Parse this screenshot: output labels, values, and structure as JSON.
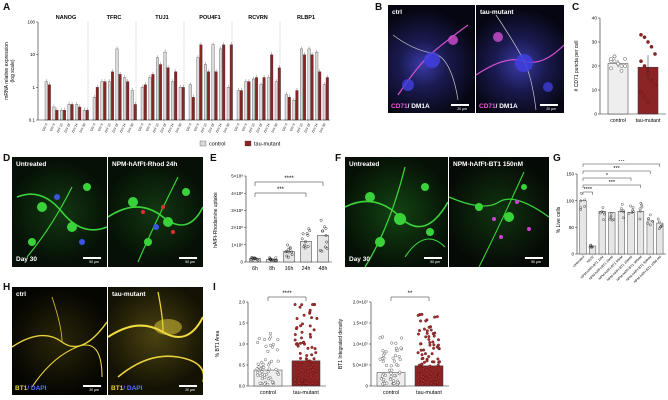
{
  "panels": {
    "A": {
      "letter": "A",
      "ylabel": "mRNA relative expression",
      "ylabel2": "(log scale)",
      "yticks": [
        "100",
        "10",
        "1",
        "0.1"
      ],
      "genes": [
        "NANOG",
        "TFRC",
        "TUJ1",
        "POU4F1",
        "RCVRN",
        "RLBP1"
      ],
      "days": [
        "DIV 0",
        "DIV 6",
        "DIV 12",
        "DIV 18",
        "DIV 24",
        "DIV 30"
      ],
      "legend": [
        "control",
        "tau-mutant"
      ]
    },
    "B": {
      "letter": "B",
      "ctrl": "ctrl",
      "mut": "tau-mutant",
      "stain_a": "CD71",
      "stain_b": "/ DM1A",
      "scale": "20 µm"
    },
    "C": {
      "letter": "C",
      "ylabel": "# CD71 puncta per cell",
      "yticks": [
        "40",
        "30",
        "20",
        "10",
        "0"
      ],
      "xcats": [
        "control",
        "tau-mutant"
      ]
    },
    "D": {
      "letter": "D",
      "left": "Untreated",
      "right": "NPM-hAfFt-Rhod 24h",
      "day": "Day 30",
      "scale": "50 µm"
    },
    "E": {
      "letter": "E",
      "ylabel": "hAfFt-Rhodamine uptake",
      "yticks": [
        "5×10⁸",
        "4×10⁸",
        "3×10⁸",
        "2×10⁸",
        "1×10⁸",
        "0"
      ],
      "xcats": [
        "6h",
        "8h",
        "16h",
        "24h",
        "48h"
      ],
      "sig1": "****",
      "sig2": "***"
    },
    "F": {
      "letter": "F",
      "left": "Untreated",
      "right": "NPM-hAfFt-BT1 150nM",
      "day": "Day 30",
      "scale": "50 µm"
    },
    "G": {
      "letter": "G",
      "ylabel": "% Live cells",
      "yticks": [
        "150",
        "100",
        "50",
        "0"
      ],
      "xcats": [
        "Untreated",
        "H2O2",
        "NPM-hAfFt-BT1 1nM",
        "NPM-hAfFt-BT1 10nM",
        "NPM-hAfFt-BT1 50nM",
        "NPM-hAfFt-BT1 150nM",
        "NPM-hAfFt-BT1 300nM",
        "NPM-hAfFt-BT1 500nM",
        "NPM-hAfFt-BT1 1000 nM"
      ],
      "sigs": [
        "****",
        "***",
        "***",
        "*",
        "***"
      ]
    },
    "H": {
      "letter": "H",
      "ctrl": "ctrl",
      "mut": "tau-mutant",
      "stain_a": "BT1",
      "stain_b": "/ DAPI",
      "scale": "20 µm"
    },
    "I": {
      "letter": "I",
      "left": {
        "ylabel": "% BT1 Area",
        "yticks": [
          "2.0",
          "1.5",
          "1.0",
          "0.5",
          "0.0"
        ],
        "sig": "****"
      },
      "right": {
        "ylabel": "BT1 Integrated density",
        "yticks": [
          "2.0×10⁷",
          "1.5×10⁷",
          "1.0×10⁷",
          "5.0×10⁶",
          "0"
        ],
        "sig": "**"
      },
      "xcats": [
        "control",
        "tau-mutant"
      ]
    }
  },
  "colors": {
    "control": "#d9d9d9",
    "mutant": "#8b2525",
    "magenta": "#d040d0",
    "green": "#39c839",
    "yellow": "#e8d23a",
    "blue": "#3a55e0"
  },
  "chart_data": [
    {
      "type": "bar",
      "panel": "A",
      "scale": "log",
      "ylim": [
        0.1,
        100
      ],
      "categories": [
        "DIV 0",
        "DIV 6",
        "DIV 12",
        "DIV 18",
        "DIV 24",
        "DIV 30"
      ],
      "groups": [
        "NANOG",
        "TFRC",
        "TUJ1",
        "POU4F1",
        "RCVRN",
        "RLBP1"
      ],
      "series": [
        {
          "name": "control",
          "values": [
            [
              1.5,
              0.25,
              0.2,
              0.3,
              0.3,
              0.2
            ],
            [
              0.5,
              1.5,
              1.5,
              15,
              2,
              0.8
            ],
            [
              1,
              2,
              8,
              12,
              1.5,
              1
            ],
            [
              1.2,
              8,
              5,
              20,
              15,
              1
            ],
            [
              0.8,
              1.5,
              1.8,
              1.2,
              2,
              1.5
            ],
            [
              0.6,
              0.4,
              15,
              15,
              12,
              1.2
            ]
          ]
        },
        {
          "name": "tau-mutant",
          "values": [
            [
              1.2,
              0.2,
              0.2,
              0.3,
              0.25,
              0.2
            ],
            [
              1,
              1.5,
              3,
              2.5,
              1.5,
              0.3
            ],
            [
              1.2,
              2.5,
              5,
              4,
              3,
              1
            ],
            [
              0.5,
              20,
              3,
              3,
              20,
              20
            ],
            [
              0.8,
              1.5,
              2,
              2,
              10,
              4
            ],
            [
              0.5,
              0.8,
              10,
              10,
              3,
              2
            ]
          ]
        }
      ]
    },
    {
      "type": "bar",
      "panel": "C",
      "categories": [
        "control",
        "tau-mutant"
      ],
      "values": [
        21,
        19.5
      ],
      "ylim": [
        0,
        40
      ],
      "points": [
        [
          22,
          24,
          21,
          20,
          23,
          19,
          22,
          21,
          18,
          20,
          23,
          24
        ],
        [
          33,
          32,
          30,
          28,
          25,
          22,
          20,
          17,
          14,
          12,
          9,
          7,
          5
        ]
      ]
    },
    {
      "type": "bar",
      "panel": "E",
      "categories": [
        "6h",
        "8h",
        "16h",
        "24h",
        "48h"
      ],
      "values": [
        20000000.0,
        15000000.0,
        60000000.0,
        120000000.0,
        155000000.0
      ],
      "ylim": [
        0,
        500000000.0
      ]
    },
    {
      "type": "bar",
      "panel": "G",
      "categories": [
        "Untreated",
        "H2O2",
        "NPM-hAfFt-BT1 1nM",
        "NPM-hAfFt-BT1 10nM",
        "NPM-hAfFt-BT1 50nM",
        "NPM-hAfFt-BT1 150nM",
        "NPM-hAfFt-BT1 300nM",
        "NPM-hAfFt-BT1 500nM",
        "NPM-hAfFt-BT1 1000 nM"
      ],
      "values": [
        100,
        15,
        80,
        78,
        80,
        78,
        80,
        62,
        58
      ],
      "ylim": [
        0,
        150
      ]
    },
    {
      "type": "bar",
      "panel": "I-left",
      "categories": [
        "control",
        "tau-mutant"
      ],
      "values": [
        0.38,
        0.6
      ],
      "ylim": [
        0,
        2.0
      ]
    },
    {
      "type": "bar",
      "panel": "I-right",
      "categories": [
        "control",
        "tau-mutant"
      ],
      "values": [
        3200000.0,
        4800000.0
      ],
      "ylim": [
        0,
        20000000.0
      ]
    }
  ]
}
